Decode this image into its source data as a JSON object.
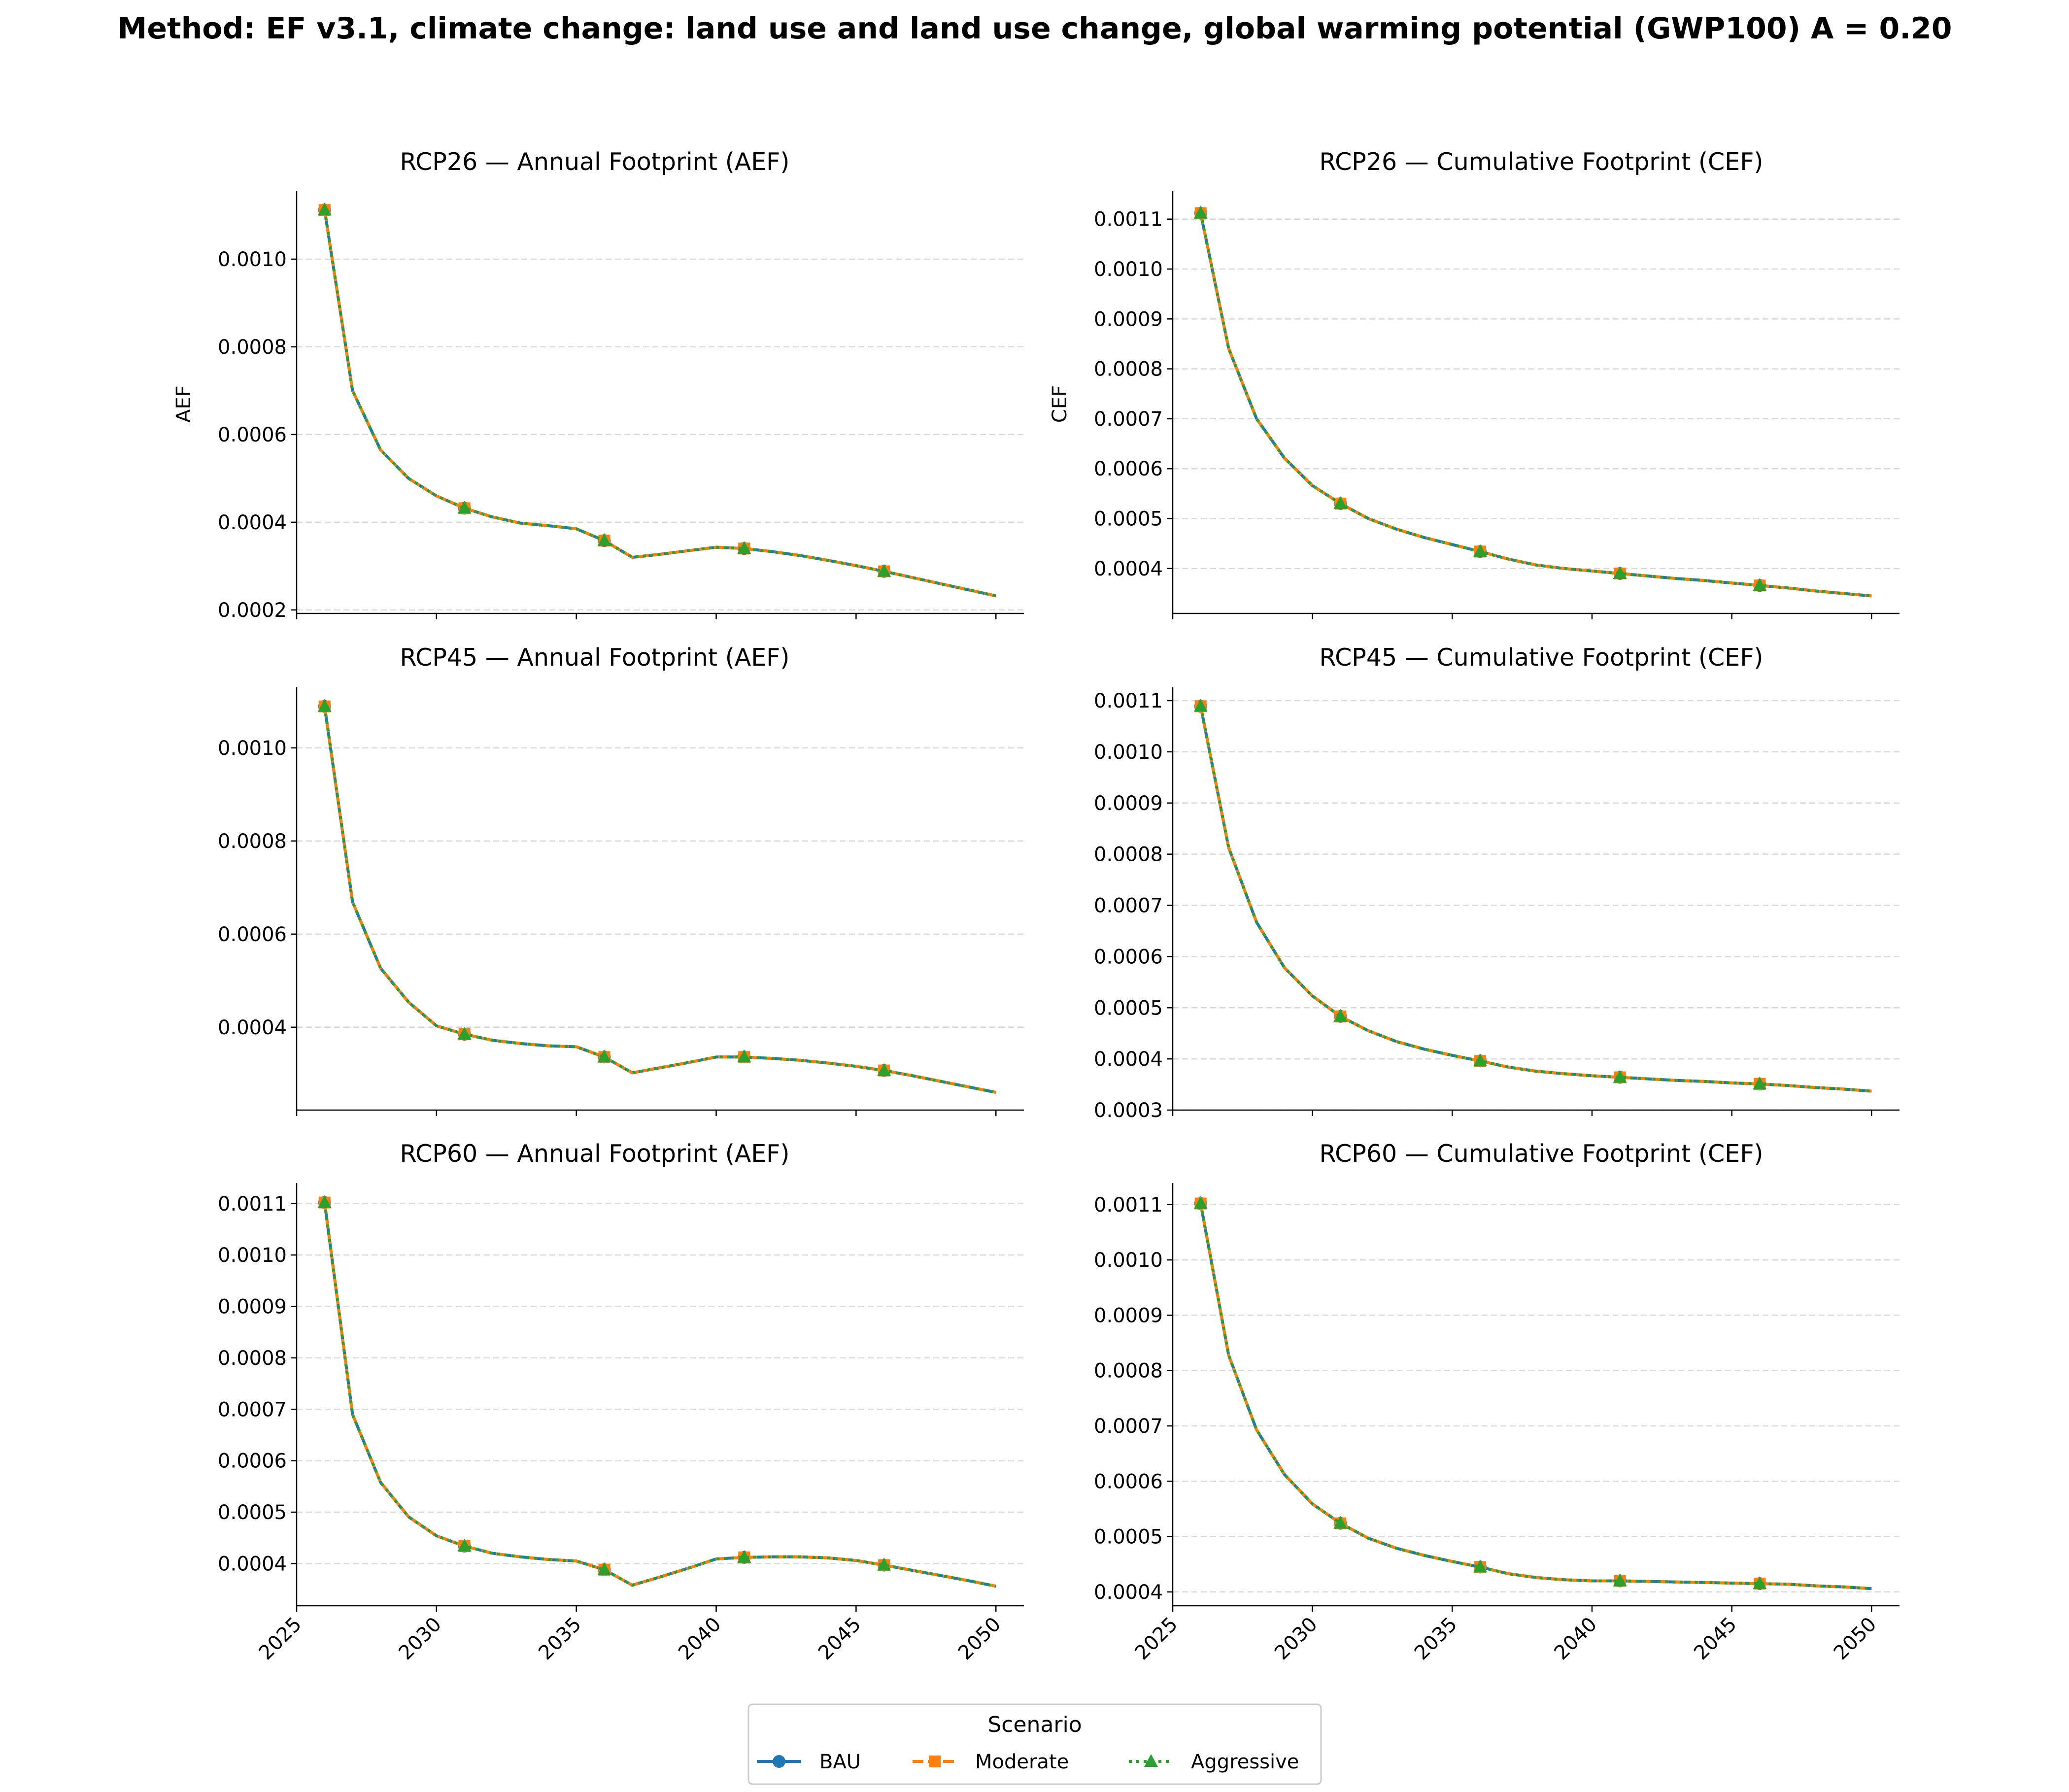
{
  "title": "Method: EF v3.1, climate change: land use and land use change, global warming potential (GWP100) A = 0.20",
  "colors": {
    "BAU": "#1f77b4",
    "Moderate": "#ff7f0e",
    "Aggressive": "#2ca02c",
    "grid": "#d9d9d9"
  },
  "legend": {
    "title": "Scenario",
    "position": "bottom-center",
    "entries": [
      {
        "name": "BAU",
        "color": "#1f77b4",
        "line": "solid",
        "marker": "circle"
      },
      {
        "name": "Moderate",
        "color": "#ff7f0e",
        "line": "dashed",
        "marker": "square"
      },
      {
        "name": "Aggressive",
        "color": "#2ca02c",
        "line": "dotted",
        "marker": "triangle"
      }
    ]
  },
  "chart_data": [
    {
      "type": "line",
      "title": "RCP26 — Annual Footprint (AEF)",
      "ylabel": "AEF",
      "xlim": [
        2025,
        2051
      ],
      "ylim": [
        0.000192,
        0.001155
      ],
      "yticks": [
        "0.0002",
        "0.0004",
        "0.0006",
        "0.0008",
        "0.0010"
      ],
      "xticks": [
        "2025",
        "2030",
        "2035",
        "2040",
        "2045",
        "2050"
      ],
      "x": [
        2026,
        2027,
        2028,
        2029,
        2030,
        2031,
        2032,
        2033,
        2034,
        2035,
        2036,
        2037,
        2038,
        2039,
        2040,
        2041,
        2042,
        2043,
        2044,
        2045,
        2046,
        2047,
        2048,
        2049,
        2050
      ],
      "series": [
        {
          "name": "BAU",
          "values": [
            0.001112,
            0.0007,
            0.000565,
            0.0005,
            0.00046,
            0.000432,
            0.000412,
            0.000398,
            0.000392,
            0.000385,
            0.000358,
            0.00032,
            0.000327,
            0.000335,
            0.000343,
            0.00034,
            0.000333,
            0.000324,
            0.000313,
            0.000301,
            0.000288,
            0.000274,
            0.00026,
            0.000246,
            0.000232
          ]
        },
        {
          "name": "Moderate",
          "values": [
            0.001112,
            0.0007,
            0.000565,
            0.0005,
            0.00046,
            0.000432,
            0.000412,
            0.000398,
            0.000392,
            0.000385,
            0.000358,
            0.00032,
            0.000327,
            0.000335,
            0.000343,
            0.00034,
            0.000333,
            0.000324,
            0.000313,
            0.000301,
            0.000288,
            0.000274,
            0.00026,
            0.000246,
            0.000232
          ]
        },
        {
          "name": "Aggressive",
          "values": [
            0.001112,
            0.0007,
            0.000565,
            0.0005,
            0.00046,
            0.000432,
            0.000412,
            0.000398,
            0.000392,
            0.000385,
            0.000358,
            0.00032,
            0.000327,
            0.000335,
            0.000343,
            0.00034,
            0.000333,
            0.000324,
            0.000313,
            0.000301,
            0.000288,
            0.000274,
            0.00026,
            0.000246,
            0.000232
          ]
        }
      ]
    },
    {
      "type": "line",
      "title": "RCP26 — Cumulative Footprint (CEF)",
      "ylabel": "CEF",
      "xlim": [
        2025,
        2051
      ],
      "ylim": [
        0.00031,
        0.001156
      ],
      "yticks": [
        "0.0004",
        "0.0005",
        "0.0006",
        "0.0007",
        "0.0008",
        "0.0009",
        "0.0010",
        "0.0011"
      ],
      "xticks": [
        "2025",
        "2030",
        "2035",
        "2040",
        "2045",
        "2050"
      ],
      "x": [
        2026,
        2027,
        2028,
        2029,
        2030,
        2031,
        2032,
        2033,
        2034,
        2035,
        2036,
        2037,
        2038,
        2039,
        2040,
        2041,
        2042,
        2043,
        2044,
        2045,
        2046,
        2047,
        2048,
        2049,
        2050
      ],
      "series": [
        {
          "name": "BAU",
          "values": [
            0.001112,
            0.000841,
            0.0007,
            0.000621,
            0.000566,
            0.00053,
            0.0005,
            0.000479,
            0.000462,
            0.000448,
            0.000434,
            0.000419,
            0.000407,
            0.0004,
            0.000395,
            0.00039,
            0.000385,
            0.00038,
            0.000376,
            0.000371,
            0.000366,
            0.000361,
            0.000355,
            0.00035,
            0.000345
          ]
        },
        {
          "name": "Moderate",
          "values": [
            0.001112,
            0.000841,
            0.0007,
            0.000621,
            0.000566,
            0.00053,
            0.0005,
            0.000479,
            0.000462,
            0.000448,
            0.000434,
            0.000419,
            0.000407,
            0.0004,
            0.000395,
            0.00039,
            0.000385,
            0.00038,
            0.000376,
            0.000371,
            0.000366,
            0.000361,
            0.000355,
            0.00035,
            0.000345
          ]
        },
        {
          "name": "Aggressive",
          "values": [
            0.001112,
            0.000841,
            0.0007,
            0.000621,
            0.000566,
            0.00053,
            0.0005,
            0.000479,
            0.000462,
            0.000448,
            0.000434,
            0.000419,
            0.000407,
            0.0004,
            0.000395,
            0.00039,
            0.000385,
            0.00038,
            0.000376,
            0.000371,
            0.000366,
            0.000361,
            0.000355,
            0.00035,
            0.000345
          ]
        }
      ]
    },
    {
      "type": "line",
      "title": "RCP45 — Annual Footprint (AEF)",
      "ylabel": "",
      "xlim": [
        2025,
        2051
      ],
      "ylim": [
        0.000222,
        0.00113
      ],
      "yticks": [
        "0.0004",
        "0.0006",
        "0.0008",
        "0.0010"
      ],
      "xticks": [
        "2025",
        "2030",
        "2035",
        "2040",
        "2045",
        "2050"
      ],
      "x": [
        2026,
        2027,
        2028,
        2029,
        2030,
        2031,
        2032,
        2033,
        2034,
        2035,
        2036,
        2037,
        2038,
        2039,
        2040,
        2041,
        2042,
        2043,
        2044,
        2045,
        2046,
        2047,
        2048,
        2049,
        2050
      ],
      "series": [
        {
          "name": "BAU",
          "values": [
            0.001089,
            0.000669,
            0.000527,
            0.000454,
            0.000403,
            0.000385,
            0.000372,
            0.000365,
            0.00036,
            0.000358,
            0.000336,
            0.000302,
            0.000313,
            0.000324,
            0.000336,
            0.000336,
            0.000333,
            0.000329,
            0.000323,
            0.000316,
            0.000307,
            0.000296,
            0.000284,
            0.000272,
            0.00026
          ]
        },
        {
          "name": "Moderate",
          "values": [
            0.001089,
            0.000669,
            0.000527,
            0.000454,
            0.000403,
            0.000385,
            0.000372,
            0.000365,
            0.00036,
            0.000358,
            0.000336,
            0.000302,
            0.000313,
            0.000324,
            0.000336,
            0.000336,
            0.000333,
            0.000329,
            0.000323,
            0.000316,
            0.000307,
            0.000296,
            0.000284,
            0.000272,
            0.00026
          ]
        },
        {
          "name": "Aggressive",
          "values": [
            0.001089,
            0.000669,
            0.000527,
            0.000454,
            0.000403,
            0.000385,
            0.000372,
            0.000365,
            0.00036,
            0.000358,
            0.000336,
            0.000302,
            0.000313,
            0.000324,
            0.000336,
            0.000336,
            0.000333,
            0.000329,
            0.000323,
            0.000316,
            0.000307,
            0.000296,
            0.000284,
            0.000272,
            0.00026
          ]
        }
      ]
    },
    {
      "type": "line",
      "title": "RCP45 — Cumulative Footprint (CEF)",
      "ylabel": "",
      "xlim": [
        2025,
        2051
      ],
      "ylim": [
        0.0003,
        0.001126
      ],
      "yticks": [
        "0.0003",
        "0.0004",
        "0.0005",
        "0.0006",
        "0.0007",
        "0.0008",
        "0.0009",
        "0.0010",
        "0.0011"
      ],
      "xticks": [
        "2025",
        "2030",
        "2035",
        "2040",
        "2045",
        "2050"
      ],
      "x": [
        2026,
        2027,
        2028,
        2029,
        2030,
        2031,
        2032,
        2033,
        2034,
        2035,
        2036,
        2037,
        2038,
        2039,
        2040,
        2041,
        2042,
        2043,
        2044,
        2045,
        2046,
        2047,
        2048,
        2049,
        2050
      ],
      "series": [
        {
          "name": "BAU",
          "values": [
            0.001089,
            0.000813,
            0.000667,
            0.000578,
            0.000523,
            0.000483,
            0.000455,
            0.000434,
            0.000419,
            0.000407,
            0.000396,
            0.000384,
            0.000376,
            0.000371,
            0.000367,
            0.000364,
            0.000361,
            0.000358,
            0.000356,
            0.000353,
            0.000351,
            0.000348,
            0.000344,
            0.000341,
            0.000337
          ]
        },
        {
          "name": "Moderate",
          "values": [
            0.001089,
            0.000813,
            0.000667,
            0.000578,
            0.000523,
            0.000483,
            0.000455,
            0.000434,
            0.000419,
            0.000407,
            0.000396,
            0.000384,
            0.000376,
            0.000371,
            0.000367,
            0.000364,
            0.000361,
            0.000358,
            0.000356,
            0.000353,
            0.000351,
            0.000348,
            0.000344,
            0.000341,
            0.000337
          ]
        },
        {
          "name": "Aggressive",
          "values": [
            0.001089,
            0.000813,
            0.000667,
            0.000578,
            0.000523,
            0.000483,
            0.000455,
            0.000434,
            0.000419,
            0.000407,
            0.000396,
            0.000384,
            0.000376,
            0.000371,
            0.000367,
            0.000364,
            0.000361,
            0.000358,
            0.000356,
            0.000353,
            0.000351,
            0.000348,
            0.000344,
            0.000341,
            0.000337
          ]
        }
      ]
    },
    {
      "type": "line",
      "title": "RCP60 — Annual Footprint (AEF)",
      "ylabel": "",
      "xlim": [
        2025,
        2051
      ],
      "ylim": [
        0.000318,
        0.00114
      ],
      "yticks": [
        "0.0004",
        "0.0005",
        "0.0006",
        "0.0007",
        "0.0008",
        "0.0009",
        "0.0010",
        "0.0011"
      ],
      "xticks": [
        "2025",
        "2030",
        "2035",
        "2040",
        "2045",
        "2050"
      ],
      "x": [
        2026,
        2027,
        2028,
        2029,
        2030,
        2031,
        2032,
        2033,
        2034,
        2035,
        2036,
        2037,
        2038,
        2039,
        2040,
        2041,
        2042,
        2043,
        2044,
        2045,
        2046,
        2047,
        2048,
        2049,
        2050
      ],
      "series": [
        {
          "name": "BAU",
          "values": [
            0.001102,
            0.00069,
            0.000558,
            0.000491,
            0.000454,
            0.000434,
            0.00042,
            0.000413,
            0.000408,
            0.000405,
            0.000388,
            0.000358,
            0.000374,
            0.000391,
            0.000409,
            0.000412,
            0.000413,
            0.000413,
            0.000411,
            0.000406,
            0.000397,
            0.000387,
            0.000377,
            0.000367,
            0.000356
          ]
        },
        {
          "name": "Moderate",
          "values": [
            0.001102,
            0.00069,
            0.000558,
            0.000491,
            0.000454,
            0.000434,
            0.00042,
            0.000413,
            0.000408,
            0.000405,
            0.000388,
            0.000358,
            0.000374,
            0.000391,
            0.000409,
            0.000412,
            0.000413,
            0.000413,
            0.000411,
            0.000406,
            0.000397,
            0.000387,
            0.000377,
            0.000367,
            0.000356
          ]
        },
        {
          "name": "Aggressive",
          "values": [
            0.001102,
            0.00069,
            0.000558,
            0.000491,
            0.000454,
            0.000434,
            0.00042,
            0.000413,
            0.000408,
            0.000405,
            0.000388,
            0.000358,
            0.000374,
            0.000391,
            0.000409,
            0.000412,
            0.000413,
            0.000413,
            0.000411,
            0.000406,
            0.000397,
            0.000387,
            0.000377,
            0.000367,
            0.000356
          ]
        }
      ]
    },
    {
      "type": "line",
      "title": "RCP60 — Cumulative Footprint (CEF)",
      "ylabel": "",
      "xlim": [
        2025,
        2051
      ],
      "ylim": [
        0.000375,
        0.001139
      ],
      "yticks": [
        "0.0004",
        "0.0005",
        "0.0006",
        "0.0007",
        "0.0008",
        "0.0009",
        "0.0010",
        "0.0011"
      ],
      "xticks": [
        "2025",
        "2030",
        "2035",
        "2040",
        "2045",
        "2050"
      ],
      "x": [
        2026,
        2027,
        2028,
        2029,
        2030,
        2031,
        2032,
        2033,
        2034,
        2035,
        2036,
        2037,
        2038,
        2039,
        2040,
        2041,
        2042,
        2043,
        2044,
        2045,
        2046,
        2047,
        2048,
        2049,
        2050
      ],
      "series": [
        {
          "name": "BAU",
          "values": [
            0.001102,
            0.000828,
            0.000693,
            0.000612,
            0.000559,
            0.000524,
            0.000497,
            0.000479,
            0.000466,
            0.000455,
            0.000445,
            0.000433,
            0.000426,
            0.000422,
            0.00042,
            0.00042,
            0.000419,
            0.000418,
            0.000417,
            0.000416,
            0.000415,
            0.000414,
            0.000411,
            0.000409,
            0.000406
          ]
        },
        {
          "name": "Moderate",
          "values": [
            0.001102,
            0.000828,
            0.000693,
            0.000612,
            0.000559,
            0.000524,
            0.000497,
            0.000479,
            0.000466,
            0.000455,
            0.000445,
            0.000433,
            0.000426,
            0.000422,
            0.00042,
            0.00042,
            0.000419,
            0.000418,
            0.000417,
            0.000416,
            0.000415,
            0.000414,
            0.000411,
            0.000409,
            0.000406
          ]
        },
        {
          "name": "Aggressive",
          "values": [
            0.001102,
            0.000828,
            0.000693,
            0.000612,
            0.000559,
            0.000524,
            0.000497,
            0.000479,
            0.000466,
            0.000455,
            0.000445,
            0.000433,
            0.000426,
            0.000422,
            0.00042,
            0.00042,
            0.000419,
            0.000418,
            0.000417,
            0.000416,
            0.000415,
            0.000414,
            0.000411,
            0.000409,
            0.000406
          ]
        }
      ]
    }
  ]
}
